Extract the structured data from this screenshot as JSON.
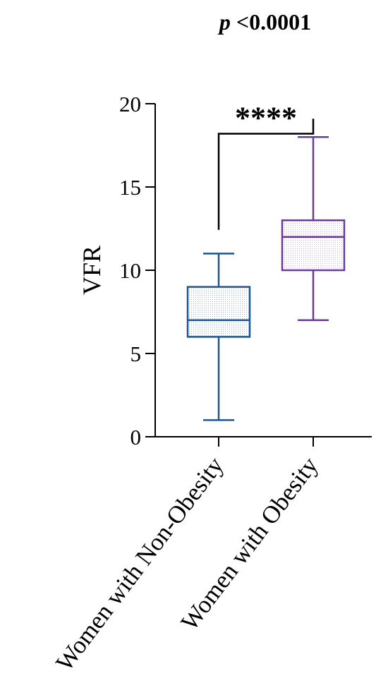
{
  "chart_data": {
    "type": "box",
    "title_italic": "p",
    "title_rest": " <0.0001",
    "ylabel": "VFR",
    "xlabel": "",
    "ylim": [
      0,
      20
    ],
    "yticks": [
      "0",
      "5",
      "10",
      "15",
      "20"
    ],
    "grid": false,
    "legend": "none",
    "categories": [
      "Women with Non-Obesity",
      "Women with Obesity"
    ],
    "series": [
      {
        "min": 1,
        "q1": 6,
        "median": 7,
        "q3": 9,
        "max": 11,
        "color": "#1f5591"
      },
      {
        "min": 7,
        "q1": 10,
        "median": 12,
        "q3": 13,
        "max": 18,
        "color": "#6a3a9c"
      }
    ],
    "significance": {
      "label": "****",
      "bracket_from": 12,
      "bracket_to": 18.2
    }
  }
}
